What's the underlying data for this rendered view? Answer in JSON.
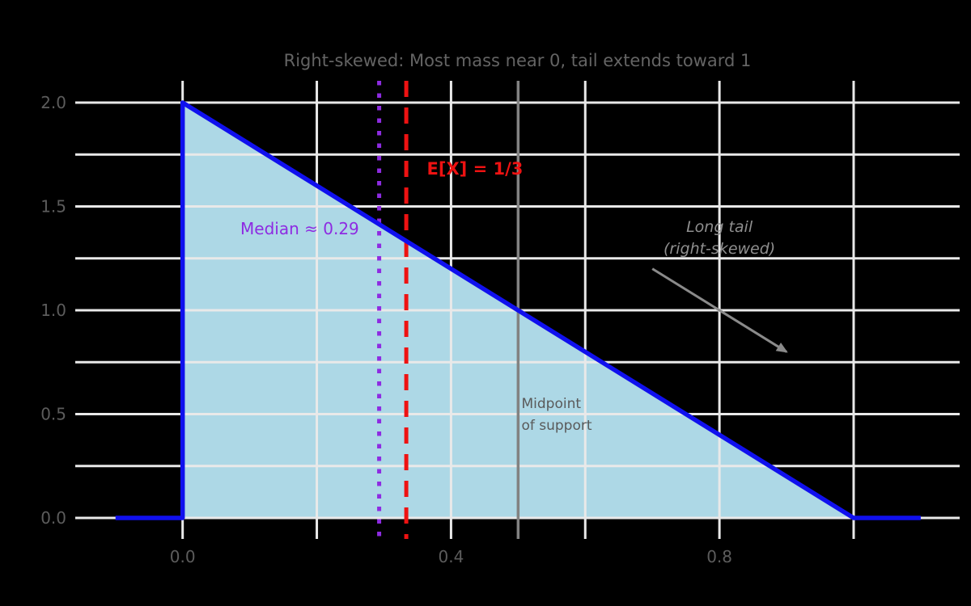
{
  "chart_data": {
    "type": "area",
    "title": "Right-skewed: Most mass near 0, tail extends toward 1",
    "title_color": "#646464",
    "tick_color": "#5c5c5c",
    "grid_color": "#e9e9e9",
    "xlim": [
      -0.16,
      1.158
    ],
    "ylim": [
      -0.101,
      2.105
    ],
    "x_ticks": [
      {
        "v": 0.0,
        "label": "0.0"
      },
      {
        "v": 0.4,
        "label": "0.4"
      },
      {
        "v": 0.8,
        "label": "0.8"
      }
    ],
    "y_ticks": [
      {
        "v": 0.0,
        "label": "0.0"
      },
      {
        "v": 0.5,
        "label": "0.5"
      },
      {
        "v": 1.0,
        "label": "1.0"
      },
      {
        "v": 1.5,
        "label": "1.5"
      },
      {
        "v": 2.0,
        "label": "2.0"
      }
    ],
    "x_gridlines": [
      0,
      0.2,
      0.4,
      0.6,
      0.8,
      1.0
    ],
    "y_gridlines": [
      0,
      0.25,
      0.5,
      0.75,
      1.0,
      1.25,
      1.5,
      1.75,
      2.0
    ],
    "series": [
      {
        "name": "density",
        "points": [
          [
            -0.1,
            0
          ],
          [
            0,
            0
          ],
          [
            0,
            2
          ],
          [
            1,
            0
          ],
          [
            1.1,
            0
          ]
        ],
        "line_color": "#1010ee",
        "fill_points": [
          [
            0,
            0
          ],
          [
            0,
            2
          ],
          [
            1,
            0
          ]
        ],
        "fill_color": "#add8e6"
      }
    ],
    "vlines": [
      {
        "name": "median-line",
        "x": 0.2929,
        "style": "dotted",
        "color": "#8e2be2"
      },
      {
        "name": "mean-line",
        "x": 0.3333,
        "style": "dashed",
        "color": "#ee1212"
      },
      {
        "name": "midpoint-line",
        "x": 0.5,
        "style": "solid",
        "color": "#828282"
      }
    ],
    "annotations": [
      {
        "name": "mean-label",
        "lines": [
          "E[X] = 1/3"
        ],
        "x": 0.364,
        "y": 1.68,
        "color": "#ee1212",
        "weight": "bold",
        "fontstyle": "normal",
        "anchor": "start",
        "size": 21
      },
      {
        "name": "median-label",
        "lines": [
          "Median ≈ 0.29"
        ],
        "x": 0.263,
        "y": 1.393,
        "color": "#8e2be2",
        "weight": "normal",
        "fontstyle": "normal",
        "anchor": "end",
        "size": 20
      },
      {
        "name": "long-tail-label",
        "lines": [
          "Long tail",
          "(right-skewed)"
        ],
        "x": 0.8,
        "y": 1.4,
        "color": "#8f8f8f",
        "weight": "normal",
        "fontstyle": "italic",
        "anchor": "middle",
        "size": 19
      },
      {
        "name": "midpoint-label",
        "lines": [
          "Midpoint",
          "of support"
        ],
        "x": 0.505,
        "y": 0.549,
        "color": "#5a5a5a",
        "weight": "normal",
        "fontstyle": "normal",
        "anchor": "start",
        "size": 17
      }
    ],
    "arrow": {
      "from": [
        0.7,
        1.2
      ],
      "to": [
        0.9,
        0.8
      ],
      "color": "#8a8a8a"
    }
  }
}
